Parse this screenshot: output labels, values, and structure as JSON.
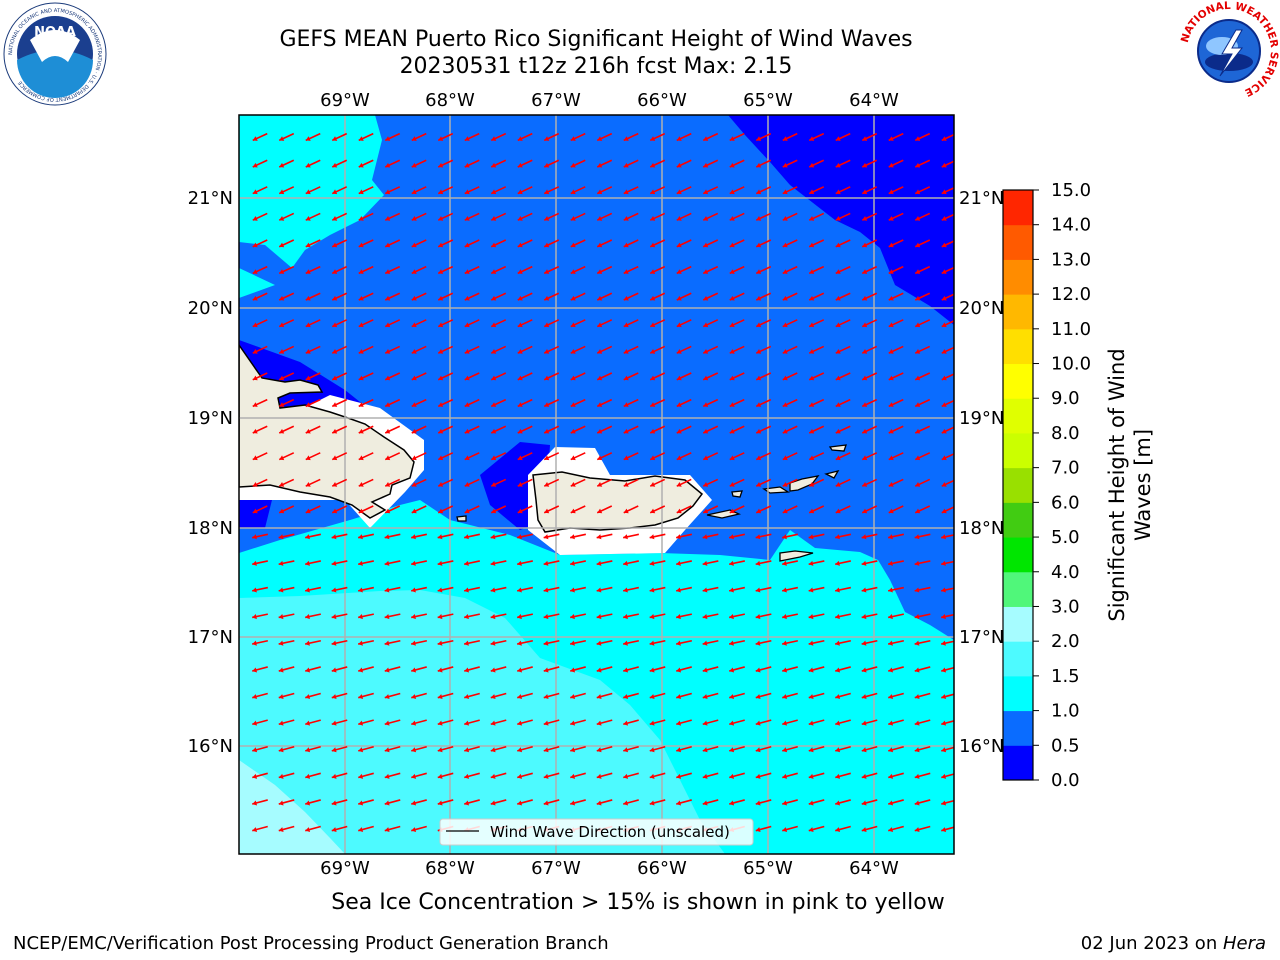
{
  "header": {
    "title_line1": "GEFS MEAN Puerto Rico Significant Height of Wind Waves",
    "title_line2": "20230531 t12z 216h fcst   Max: 2.15"
  },
  "logos": {
    "left": "NOAA",
    "left_ring": "NATIONAL OCEANIC AND ATMOSPHERIC ADMINISTRATION · U.S. DEPARTMENT OF COMMERCE",
    "right_ring": "NATIONAL WEATHER SERVICE"
  },
  "map": {
    "lon_labels": [
      "69°W",
      "68°W",
      "67°W",
      "66°W",
      "65°W",
      "64°W"
    ],
    "lat_labels": [
      "21°N",
      "20°N",
      "19°N",
      "18°N",
      "17°N",
      "16°N"
    ],
    "legend_label": "Wind Wave Direction (unscaled)",
    "arrow_color": "#ff0000"
  },
  "colorbar": {
    "label_line1": "Significant Height of Wind",
    "label_line2": "Waves [m]",
    "ticks": [
      "0.0",
      "0.5",
      "1.0",
      "1.5",
      "2.0",
      "3.0",
      "4.0",
      "5.0",
      "6.0",
      "7.0",
      "8.0",
      "9.0",
      "10.0",
      "11.0",
      "12.0",
      "13.0",
      "14.0",
      "15.0"
    ],
    "colors": [
      "#0000ff",
      "#0a6cff",
      "#00ffff",
      "#4dfaff",
      "#a6fcff",
      "#50f77a",
      "#00e600",
      "#41cc12",
      "#99e000",
      "#cbff00",
      "#e0ff00",
      "#ffff00",
      "#ffdf00",
      "#ffb800",
      "#ff8c00",
      "#ff5a00",
      "#ff2600"
    ]
  },
  "footer": {
    "subtitle": "Sea Ice Concentration > 15% is shown in pink to yellow",
    "left": "NCEP/EMC/Verification Post Processing Product Generation Branch",
    "right_date": "02 Jun 2023 on ",
    "right_machine": "Hera"
  }
}
